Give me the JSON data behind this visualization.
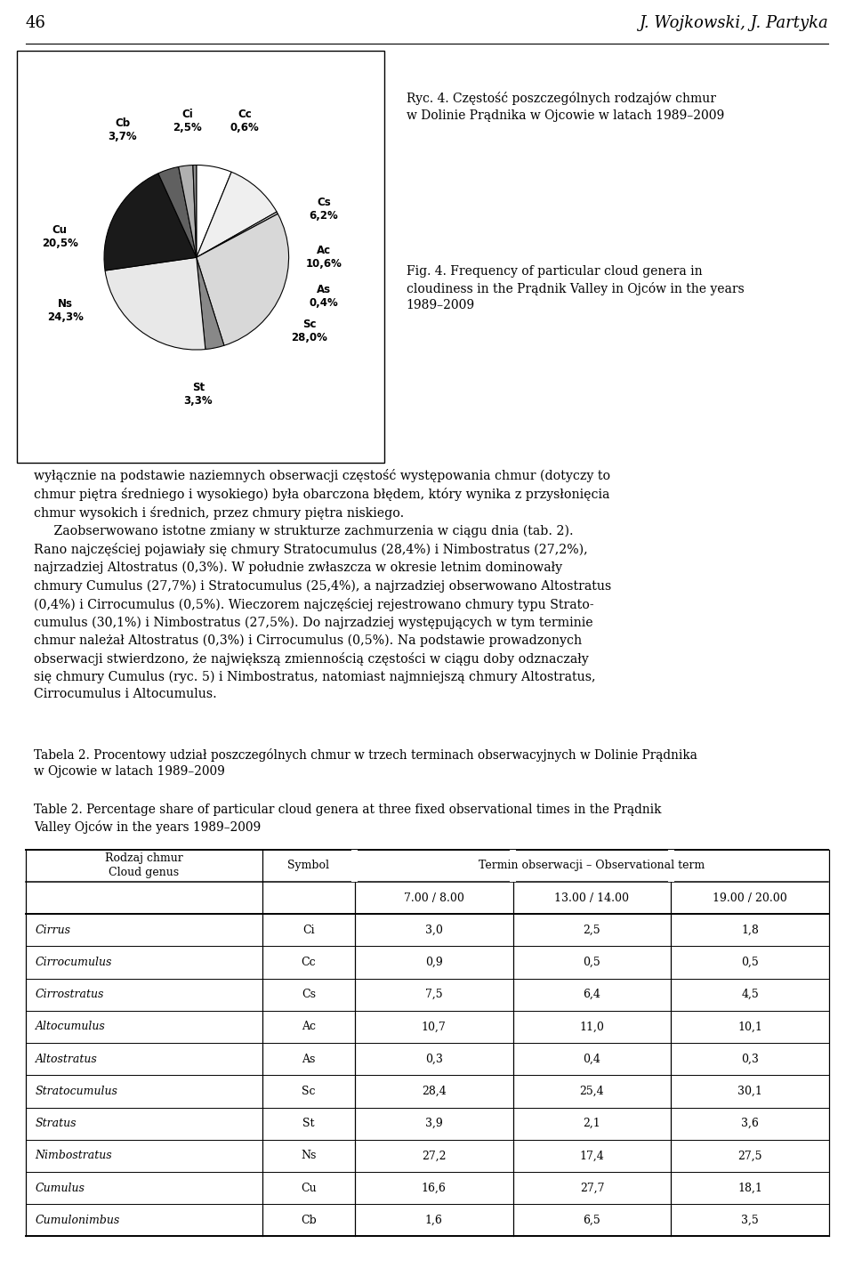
{
  "page_number": "46",
  "authors": "J. Wojkowski, J. Partyka",
  "pie_title_polish": "Ryc. 4. Częstość poszczególnych rodzajów chmur\nw Dolinie Prądnika w Ojcowie w latach 1989–2009",
  "pie_title_english": "Fig. 4. Frequency of particular cloud genera in\ncloudiness in the Prądnik Valley in Ojców in the years\n1989–2009",
  "pie_labels": [
    "Cs",
    "Ac",
    "As",
    "Sc",
    "St",
    "Ns",
    "Cu",
    "Cb",
    "Ci",
    "Cc"
  ],
  "pie_values": [
    6.2,
    10.6,
    0.4,
    28.0,
    3.3,
    24.3,
    20.5,
    3.7,
    2.5,
    0.6
  ],
  "pie_colors": [
    "#ffffff",
    "#efefef",
    "#c8c8c8",
    "#d8d8d8",
    "#888888",
    "#e8e8e8",
    "#1a1a1a",
    "#606060",
    "#b0b0b0",
    "#909090"
  ],
  "body_text_1": "wyłącznie na podstawie naziemnych obserwacji częstość występowania chmur (dotyczy to\nchmur piętra średniego i wysokiego) była obarczona błędem, który wynika z przysłonięcia\nchmur wysokich i średnich, przez chmury piętra niskiego.",
  "table2_title_polish": "Tabela 2. Procentowy udział poszczególnych chmur w trzech terminach obserwacyjnych w Dolinie Prądnika\nw Ojcowie w latach 1989–2009",
  "table2_title_english": "Table 2. Percentage share of particular cloud genera at three fixed observational times in the Prądnik\nValley Ojców in the years 1989–2009",
  "table_rows": [
    [
      "Cirrus",
      "Ci",
      "3,0",
      "2,5",
      "1,8"
    ],
    [
      "Cirrocumulus",
      "Cc",
      "0,9",
      "0,5",
      "0,5"
    ],
    [
      "Cirrostratus",
      "Cs",
      "7,5",
      "6,4",
      "4,5"
    ],
    [
      "Altocumulus",
      "Ac",
      "10,7",
      "11,0",
      "10,1"
    ],
    [
      "Altostratus",
      "As",
      "0,3",
      "0,4",
      "0,3"
    ],
    [
      "Stratocumulus",
      "Sc",
      "28,4",
      "25,4",
      "30,1"
    ],
    [
      "Stratus",
      "St",
      "3,9",
      "2,1",
      "3,6"
    ],
    [
      "Nimbostratus",
      "Ns",
      "27,2",
      "17,4",
      "27,5"
    ],
    [
      "Cumulus",
      "Cu",
      "16,6",
      "27,7",
      "18,1"
    ],
    [
      "Cumulonimbus",
      "Cb",
      "1,6",
      "6,5",
      "3,5"
    ]
  ]
}
